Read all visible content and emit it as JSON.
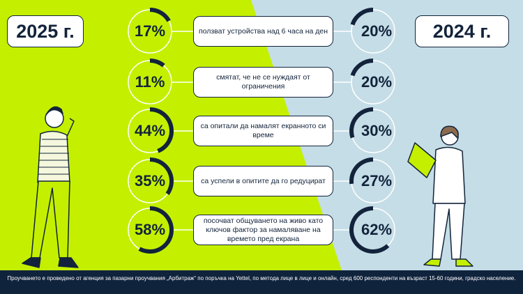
{
  "years": {
    "left": "2025 г.",
    "right": "2024 г."
  },
  "colors": {
    "lime": "#c4f000",
    "light_blue": "#c5dde6",
    "navy": "#12233b"
  },
  "chart_data": {
    "type": "donut-comparison",
    "series_names": [
      "2025 г.",
      "2024 г."
    ],
    "rows": [
      {
        "label": "ползват устройства над 6 часа на ден",
        "v2025": 17,
        "v2024": 20,
        "t2025": "17%",
        "t2024": "20%"
      },
      {
        "label": "смятат, че не се нуждаят от ограничения",
        "v2025": 11,
        "v2024": 20,
        "t2025": "11%",
        "t2024": "20%"
      },
      {
        "label": "са опитали да намалят екранното си време",
        "v2025": 44,
        "v2024": 30,
        "t2025": "44%",
        "t2024": "30%"
      },
      {
        "label": "са успели в опитите да го редуцират",
        "v2025": 35,
        "v2024": 27,
        "t2025": "35%",
        "t2024": "27%"
      },
      {
        "label": "посочват общуването на живо като ключов фактор за намаляване на времето пред екрана",
        "v2025": 58,
        "v2024": 62,
        "t2025": "58%",
        "t2024": "62%"
      }
    ]
  },
  "footer": "Проучването е проведено от агенция за пазарни проучвания „Арбитраж“ по поръчка на Yettel, по метода лице в лице и онлайн, сред 600 респонденти на възраст 15-60 години, градско население."
}
